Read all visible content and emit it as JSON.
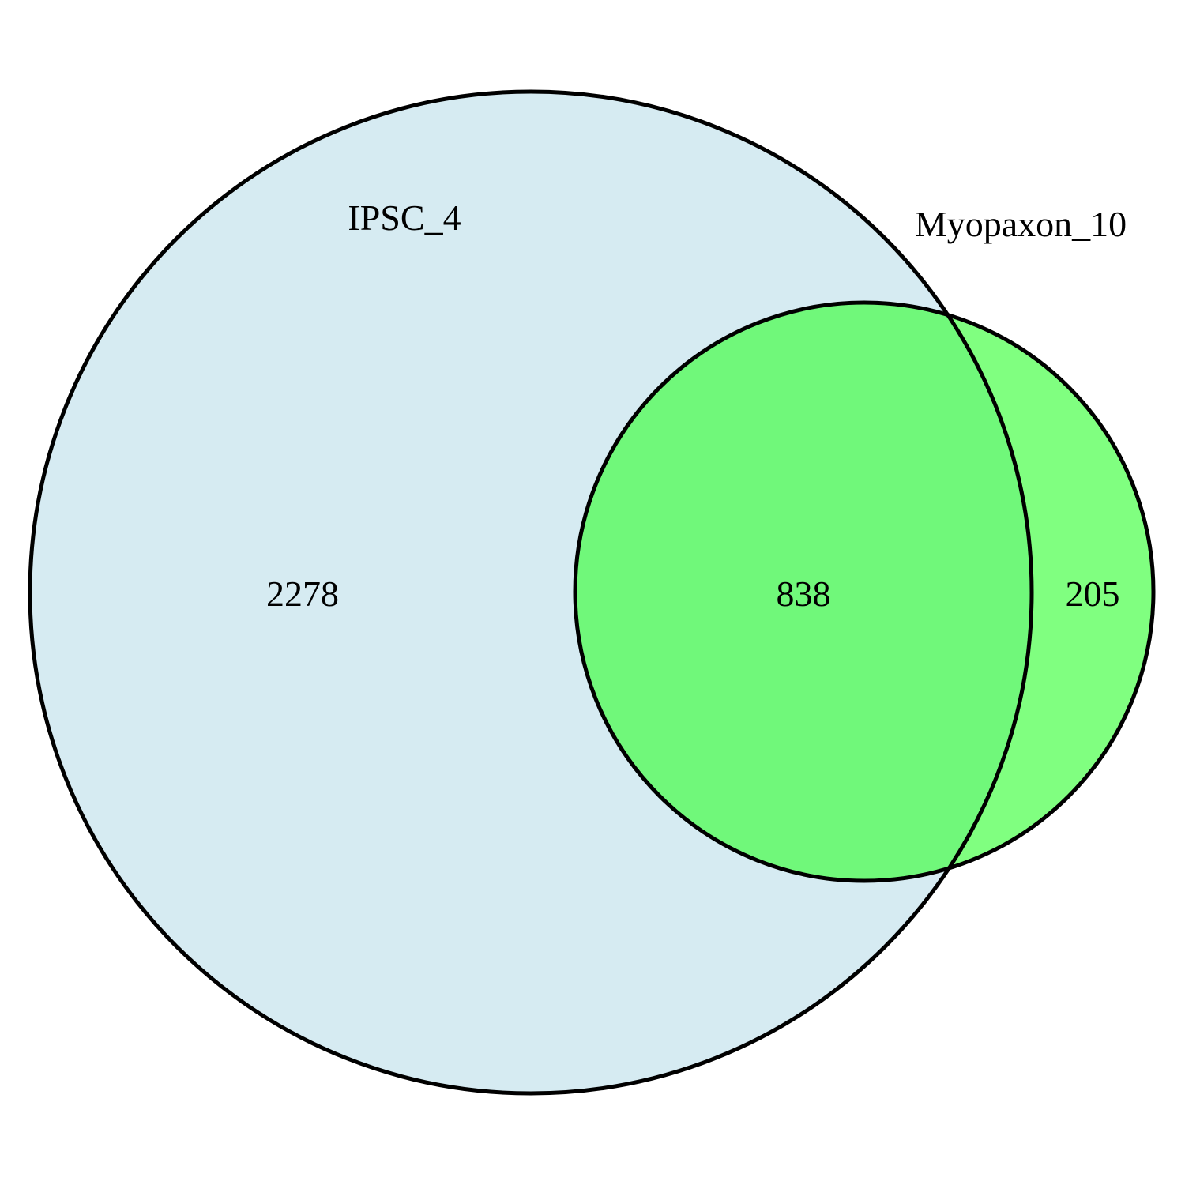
{
  "diagram": {
    "type": "venn",
    "sets": [
      {
        "name": "IPSC_4",
        "only_count": "2278",
        "fill": "#d6ebf2"
      },
      {
        "name": "Myopaxon_10",
        "only_count": "205",
        "fill": "#80ff80"
      }
    ],
    "intersection": {
      "count": "838",
      "fill": "#70f87a"
    },
    "stroke_color": "#000000"
  }
}
